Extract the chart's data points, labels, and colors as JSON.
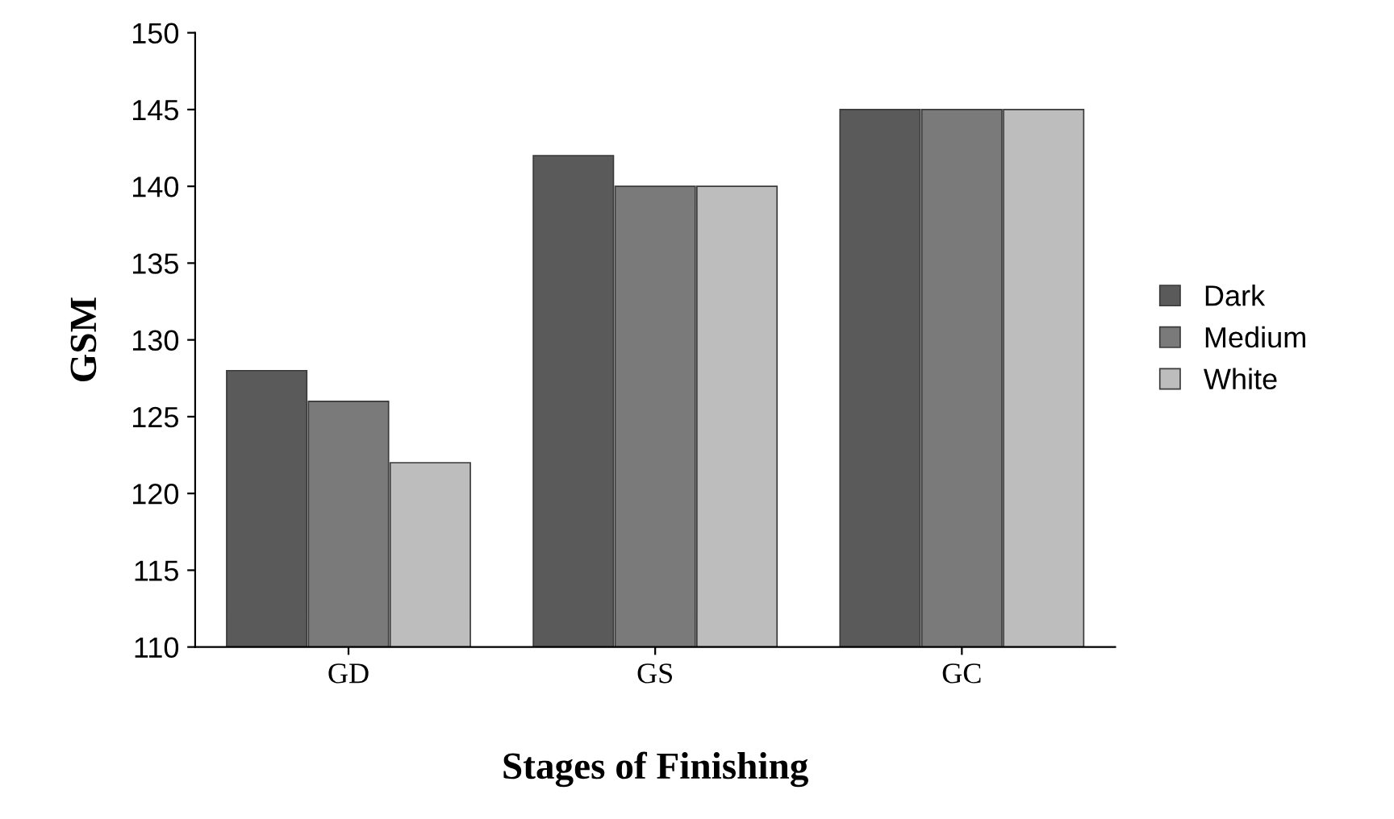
{
  "chart_data": {
    "type": "bar",
    "xlabel": "Stages of Finishing",
    "ylabel": "GSM",
    "categories": [
      "GD",
      "GS",
      "GC"
    ],
    "series": [
      {
        "name": "Dark",
        "color": "#5a5a5a",
        "values": [
          128,
          142,
          145
        ]
      },
      {
        "name": "Medium",
        "color": "#7a7a7a",
        "values": [
          126,
          140,
          145
        ]
      },
      {
        "name": "White",
        "color": "#bdbdbd",
        "values": [
          122,
          140,
          145
        ]
      }
    ],
    "ylim": [
      110,
      150
    ],
    "yticks": [
      110,
      115,
      120,
      125,
      130,
      135,
      140,
      145,
      150
    ],
    "grid": false,
    "legend": "right"
  }
}
